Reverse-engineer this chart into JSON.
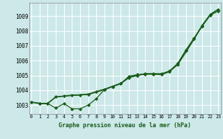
{
  "bg_color": "#cce8e8",
  "grid_color": "#ffffff",
  "line_color": "#1a5c1a",
  "x_values": [
    0,
    1,
    2,
    3,
    4,
    5,
    6,
    7,
    8,
    9,
    10,
    11,
    12,
    13,
    14,
    15,
    16,
    17,
    18,
    19,
    20,
    21,
    22,
    23
  ],
  "ylim": [
    1002.4,
    1009.9
  ],
  "xlim": [
    -0.3,
    23.3
  ],
  "yticks": [
    1003,
    1004,
    1005,
    1006,
    1007,
    1008,
    1009
  ],
  "xlabel": "Graphe pression niveau de la mer (hPa)",
  "line1_marked": [
    1003.2,
    1003.1,
    1003.1,
    1002.8,
    1003.1,
    1002.75,
    1002.75,
    1003.0,
    1003.45,
    1004.05,
    1004.25,
    1004.45,
    1004.95,
    1005.05,
    1005.08,
    1005.08,
    1005.05,
    1005.25,
    1005.75,
    1006.65,
    1007.45,
    1008.3,
    1009.05,
    1009.35
  ],
  "line2_smooth": [
    1003.2,
    1003.12,
    1003.12,
    1003.55,
    1003.6,
    1003.65,
    1003.68,
    1003.72,
    1003.88,
    1004.05,
    1004.25,
    1004.45,
    1004.85,
    1005.0,
    1005.1,
    1005.1,
    1005.1,
    1005.3,
    1005.8,
    1006.7,
    1007.5,
    1008.35,
    1009.1,
    1009.45
  ],
  "line3_smooth": [
    1003.2,
    1003.12,
    1003.12,
    1003.55,
    1003.62,
    1003.68,
    1003.7,
    1003.75,
    1003.92,
    1004.08,
    1004.28,
    1004.48,
    1004.88,
    1005.02,
    1005.12,
    1005.12,
    1005.1,
    1005.28,
    1005.72,
    1006.55,
    1007.42,
    1008.38,
    1009.12,
    1009.47
  ],
  "line4_marked": [
    1003.2,
    1003.1,
    1003.1,
    1003.55,
    1003.6,
    1003.65,
    1003.68,
    1003.72,
    1003.88,
    1004.05,
    1004.25,
    1004.45,
    1004.85,
    1005.0,
    1005.1,
    1005.1,
    1005.1,
    1005.3,
    1005.8,
    1006.7,
    1007.5,
    1008.35,
    1009.1,
    1009.45
  ]
}
